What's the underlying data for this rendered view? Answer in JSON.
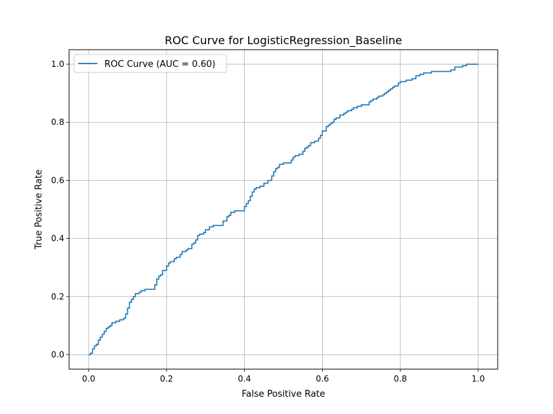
{
  "chart_data": {
    "type": "line",
    "title": "ROC Curve for LogisticRegression_Baseline",
    "xlabel": "False Positive Rate",
    "ylabel": "True Positive Rate",
    "xlim": [
      -0.05,
      1.05
    ],
    "ylim": [
      -0.05,
      1.05
    ],
    "xticks": [
      0.0,
      0.2,
      0.4,
      0.6,
      0.8,
      1.0
    ],
    "yticks": [
      0.0,
      0.2,
      0.4,
      0.6,
      0.8,
      1.0
    ],
    "xtick_labels": [
      "0.0",
      "0.2",
      "0.4",
      "0.6",
      "0.8",
      "1.0"
    ],
    "ytick_labels": [
      "0.0",
      "0.2",
      "0.4",
      "0.6",
      "0.8",
      "1.0"
    ],
    "grid": true,
    "legend_position": "top-left",
    "series": [
      {
        "name": "ROC Curve (AUC = 0.60)",
        "color": "#1f77b4",
        "step": true,
        "x": [
          0.0,
          0.005,
          0.01,
          0.015,
          0.02,
          0.025,
          0.03,
          0.035,
          0.04,
          0.045,
          0.05,
          0.055,
          0.06,
          0.07,
          0.075,
          0.08,
          0.09,
          0.095,
          0.1,
          0.105,
          0.11,
          0.115,
          0.12,
          0.125,
          0.13,
          0.135,
          0.145,
          0.155,
          0.17,
          0.175,
          0.18,
          0.185,
          0.19,
          0.2,
          0.205,
          0.21,
          0.22,
          0.225,
          0.235,
          0.24,
          0.25,
          0.255,
          0.265,
          0.27,
          0.275,
          0.28,
          0.285,
          0.295,
          0.3,
          0.31,
          0.32,
          0.34,
          0.345,
          0.355,
          0.36,
          0.365,
          0.375,
          0.395,
          0.4,
          0.405,
          0.41,
          0.415,
          0.42,
          0.425,
          0.43,
          0.44,
          0.45,
          0.46,
          0.47,
          0.475,
          0.48,
          0.485,
          0.49,
          0.495,
          0.5,
          0.52,
          0.525,
          0.53,
          0.54,
          0.55,
          0.555,
          0.56,
          0.565,
          0.57,
          0.58,
          0.59,
          0.595,
          0.6,
          0.61,
          0.615,
          0.62,
          0.625,
          0.63,
          0.635,
          0.645,
          0.65,
          0.655,
          0.66,
          0.665,
          0.675,
          0.68,
          0.69,
          0.7,
          0.72,
          0.725,
          0.73,
          0.74,
          0.745,
          0.755,
          0.76,
          0.765,
          0.77,
          0.775,
          0.78,
          0.785,
          0.795,
          0.8,
          0.815,
          0.82,
          0.83,
          0.84,
          0.85,
          0.86,
          0.88,
          0.93,
          0.94,
          0.96,
          0.97,
          0.98,
          1.0
        ],
        "y": [
          0.0,
          0.005,
          0.02,
          0.03,
          0.035,
          0.05,
          0.06,
          0.07,
          0.08,
          0.09,
          0.095,
          0.1,
          0.11,
          0.115,
          0.115,
          0.12,
          0.125,
          0.14,
          0.16,
          0.18,
          0.19,
          0.2,
          0.21,
          0.21,
          0.215,
          0.22,
          0.225,
          0.225,
          0.24,
          0.26,
          0.27,
          0.275,
          0.29,
          0.305,
          0.315,
          0.32,
          0.33,
          0.335,
          0.345,
          0.355,
          0.36,
          0.365,
          0.38,
          0.385,
          0.395,
          0.41,
          0.415,
          0.42,
          0.43,
          0.44,
          0.445,
          0.445,
          0.46,
          0.475,
          0.48,
          0.49,
          0.495,
          0.495,
          0.51,
          0.52,
          0.53,
          0.545,
          0.56,
          0.57,
          0.575,
          0.58,
          0.59,
          0.6,
          0.615,
          0.63,
          0.64,
          0.645,
          0.655,
          0.655,
          0.66,
          0.67,
          0.68,
          0.685,
          0.69,
          0.7,
          0.71,
          0.715,
          0.72,
          0.73,
          0.735,
          0.745,
          0.755,
          0.77,
          0.785,
          0.79,
          0.795,
          0.8,
          0.81,
          0.815,
          0.825,
          0.825,
          0.83,
          0.835,
          0.84,
          0.845,
          0.85,
          0.855,
          0.86,
          0.87,
          0.875,
          0.88,
          0.885,
          0.89,
          0.895,
          0.9,
          0.905,
          0.91,
          0.915,
          0.92,
          0.925,
          0.935,
          0.94,
          0.945,
          0.945,
          0.95,
          0.96,
          0.965,
          0.97,
          0.975,
          0.98,
          0.99,
          0.995,
          1.0,
          1.0,
          1.0
        ]
      }
    ]
  }
}
